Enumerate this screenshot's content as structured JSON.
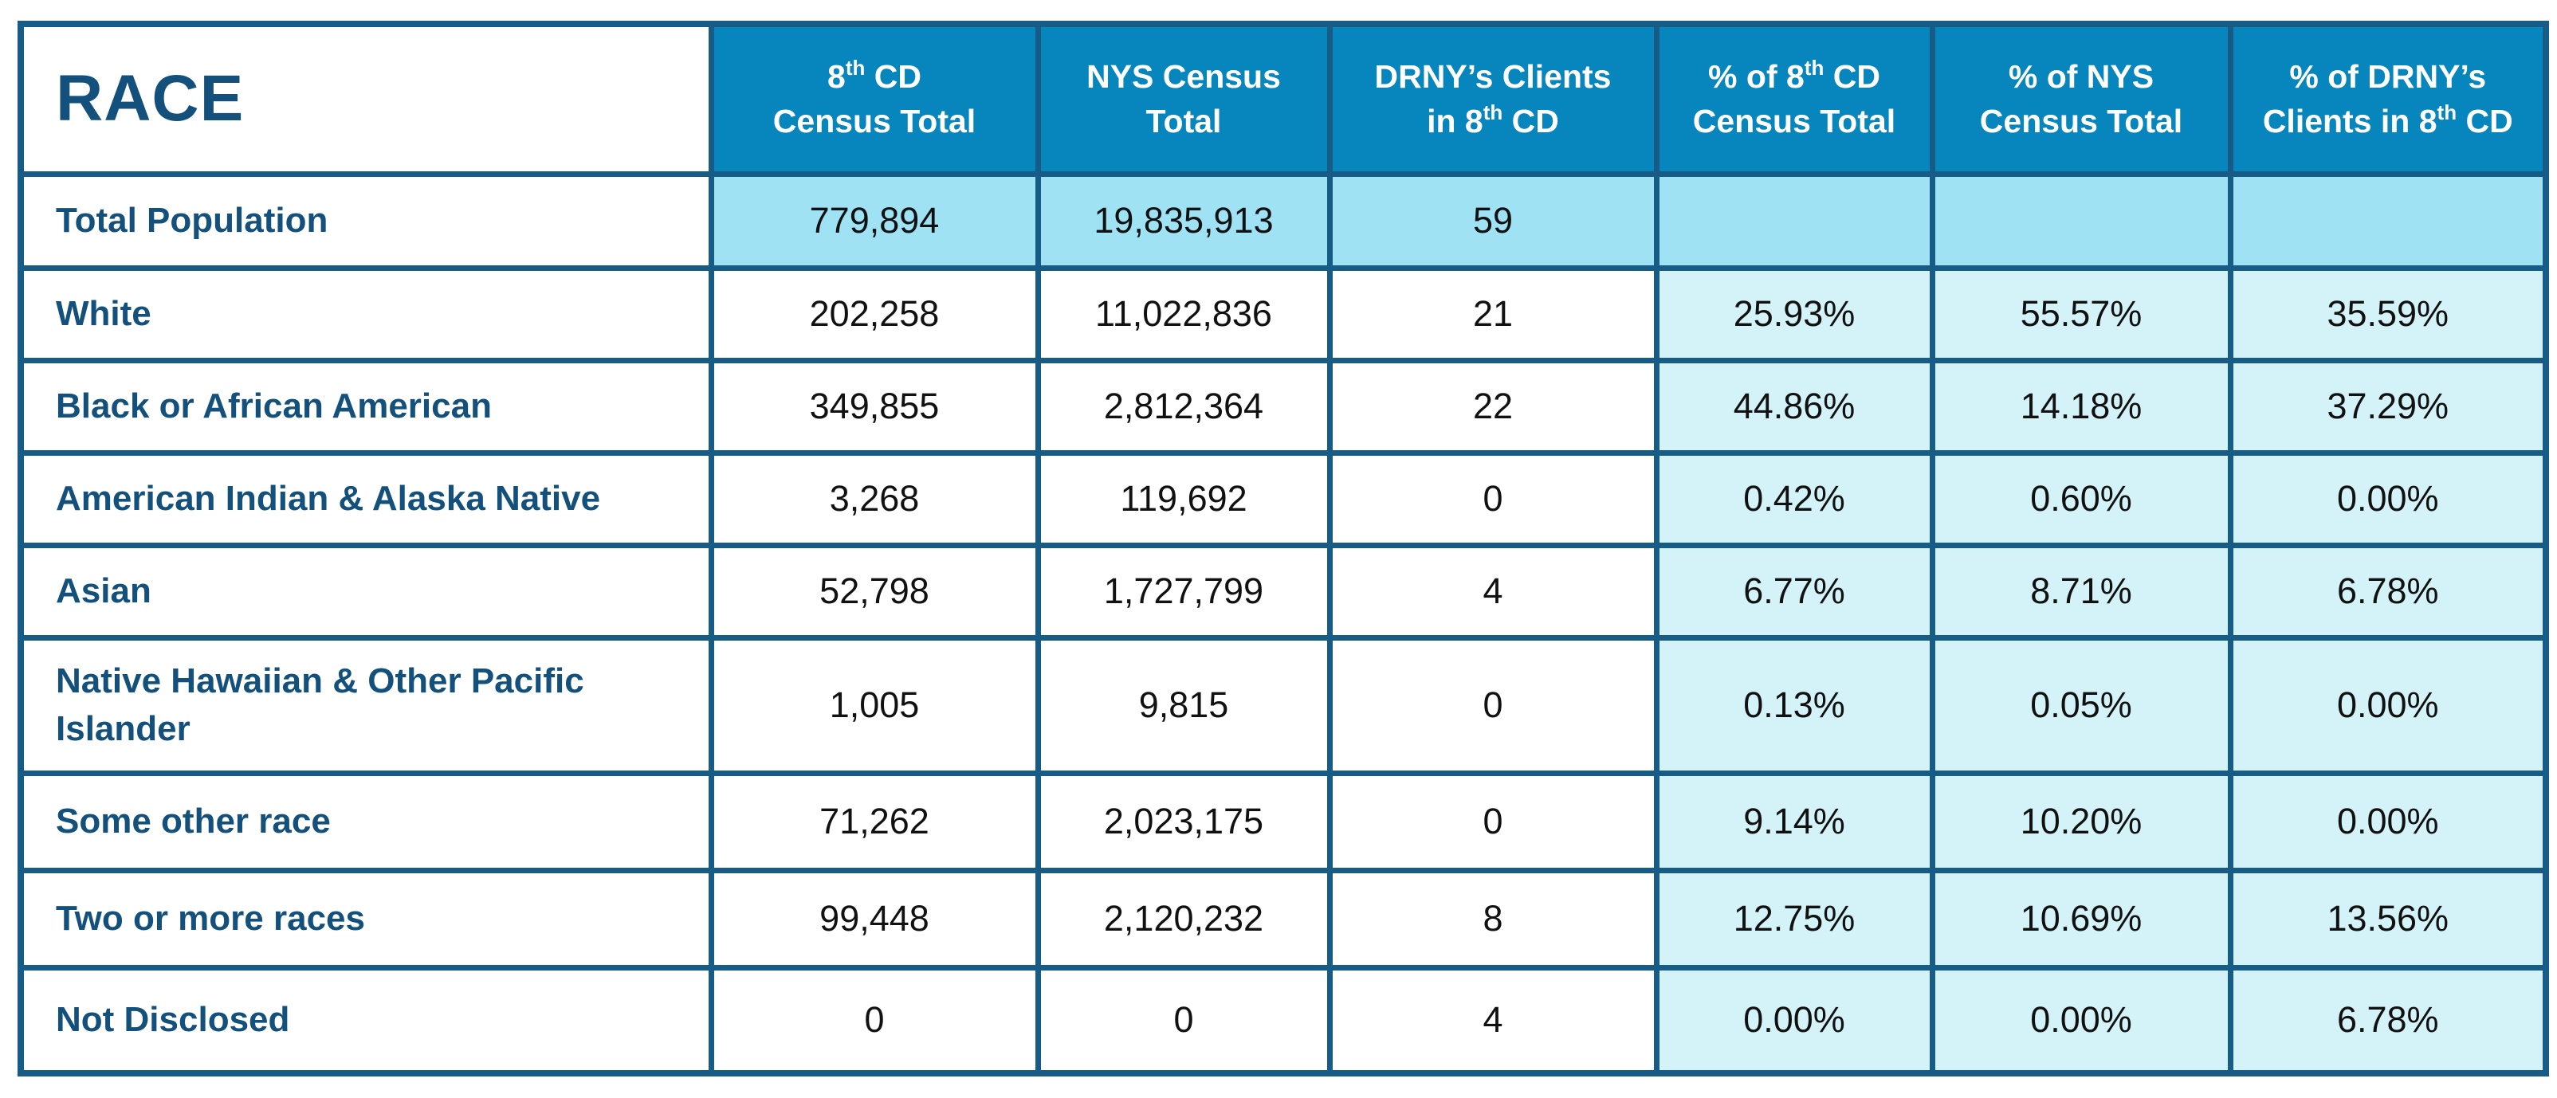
{
  "table": {
    "title": "RACE",
    "headers": [
      {
        "pre": "8",
        "sup": "th",
        "post": " CD",
        "line2_pre": "Census Total",
        "line2_sup": "",
        "line2_post": ""
      },
      {
        "pre": "NYS Census",
        "sup": "",
        "post": "",
        "line2_pre": "Total",
        "line2_sup": "",
        "line2_post": ""
      },
      {
        "pre": "DRNY’s Clients",
        "sup": "",
        "post": "",
        "line2_pre": "in 8",
        "line2_sup": "th",
        "line2_post": " CD"
      },
      {
        "pre": "% of 8",
        "sup": "th",
        "post": " CD",
        "line2_pre": "Census Total",
        "line2_sup": "",
        "line2_post": ""
      },
      {
        "pre": "% of NYS",
        "sup": "",
        "post": "",
        "line2_pre": "Census Total",
        "line2_sup": "",
        "line2_post": ""
      },
      {
        "pre": "% of DRNY’s",
        "sup": "",
        "post": "",
        "line2_pre": "Clients in 8",
        "line2_sup": "th",
        "line2_post": " CD"
      }
    ],
    "rows": [
      {
        "label": "Total Population",
        "cd_total": "779,894",
        "nys_total": "19,835,913",
        "drny_clients": "59",
        "pct_cd": "",
        "pct_nys": "",
        "pct_drny": ""
      },
      {
        "label": "White",
        "cd_total": "202,258",
        "nys_total": "11,022,836",
        "drny_clients": "21",
        "pct_cd": "25.93%",
        "pct_nys": "55.57%",
        "pct_drny": "35.59%"
      },
      {
        "label": "Black or African American",
        "cd_total": "349,855",
        "nys_total": "2,812,364",
        "drny_clients": "22",
        "pct_cd": "44.86%",
        "pct_nys": "14.18%",
        "pct_drny": "37.29%"
      },
      {
        "label": "American Indian & Alaska Native",
        "cd_total": "3,268",
        "nys_total": "119,692",
        "drny_clients": "0",
        "pct_cd": "0.42%",
        "pct_nys": "0.60%",
        "pct_drny": "0.00%"
      },
      {
        "label": "Asian",
        "cd_total": "52,798",
        "nys_total": "1,727,799",
        "drny_clients": "4",
        "pct_cd": "6.77%",
        "pct_nys": "8.71%",
        "pct_drny": "6.78%"
      },
      {
        "label": "Native Hawaiian & Other Pacific Islander",
        "cd_total": "1,005",
        "nys_total": "9,815",
        "drny_clients": "0",
        "pct_cd": "0.13%",
        "pct_nys": "0.05%",
        "pct_drny": "0.00%"
      },
      {
        "label": "Some other race",
        "cd_total": "71,262",
        "nys_total": "2,023,175",
        "drny_clients": "0",
        "pct_cd": "9.14%",
        "pct_nys": "10.20%",
        "pct_drny": "0.00%"
      },
      {
        "label": "Two or more races",
        "cd_total": "99,448",
        "nys_total": "2,120,232",
        "drny_clients": "8",
        "pct_cd": "12.75%",
        "pct_nys": "10.69%",
        "pct_drny": "13.56%"
      },
      {
        "label": "Not Disclosed",
        "cd_total": "0",
        "nys_total": "0",
        "drny_clients": "4",
        "pct_cd": "0.00%",
        "pct_nys": "0.00%",
        "pct_drny": "6.78%"
      }
    ]
  },
  "colors": {
    "border": "#165c86",
    "header_bg": "#0786bd",
    "header_text": "#ffffff",
    "label_text": "#13507c",
    "total_row_bg": "#9ee2f4",
    "pct_cell_bg": "#d4f3f9"
  }
}
